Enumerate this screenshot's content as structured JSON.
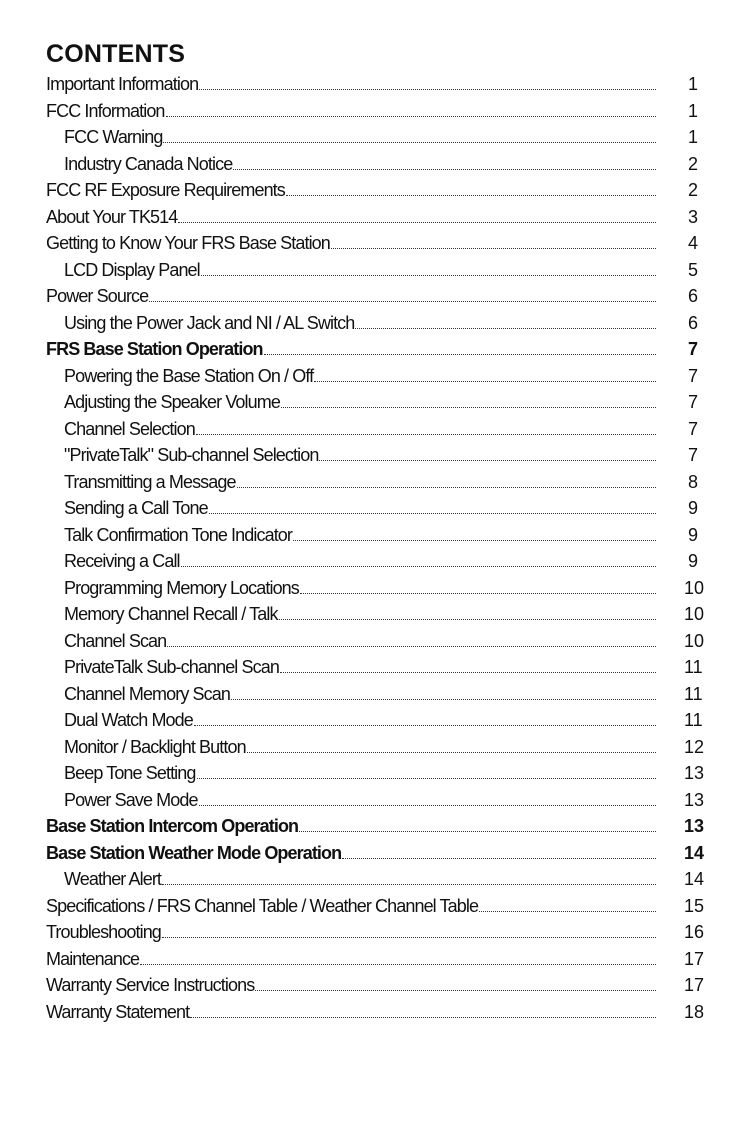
{
  "title": "CONTENTS",
  "entries": [
    {
      "label": "Important Information",
      "page": "1",
      "level": 0,
      "bold": false
    },
    {
      "label": "FCC Information",
      "page": "1",
      "level": 0,
      "bold": false
    },
    {
      "label": "FCC Warning",
      "page": "1",
      "level": 1,
      "bold": false
    },
    {
      "label": "Industry Canada Notice",
      "page": "2",
      "level": 1,
      "bold": false
    },
    {
      "label": "FCC RF Exposure Requirements",
      "page": "2",
      "level": 0,
      "bold": false
    },
    {
      "label": "About Your TK514",
      "page": "3",
      "level": 0,
      "bold": false
    },
    {
      "label": "Getting to Know Your FRS Base Station",
      "page": "4",
      "level": 0,
      "bold": false
    },
    {
      "label": "LCD Display Panel",
      "page": "5",
      "level": 1,
      "bold": false
    },
    {
      "label": "Power Source",
      "page": "6",
      "level": 0,
      "bold": false
    },
    {
      "label": "Using the Power Jack and NI / AL Switch",
      "page": "6",
      "level": 1,
      "bold": false
    },
    {
      "label": "FRS Base Station Operation",
      "page": "7",
      "level": 0,
      "bold": true
    },
    {
      "label": "Powering the Base Station On / Off",
      "page": "7",
      "level": 1,
      "bold": false
    },
    {
      "label": "Adjusting the Speaker Volume",
      "page": "7",
      "level": 1,
      "bold": false
    },
    {
      "label": "Channel Selection",
      "page": "7",
      "level": 1,
      "bold": false
    },
    {
      "label": "\"PrivateTalk\" Sub-channel Selection",
      "page": "7",
      "level": 1,
      "bold": false
    },
    {
      "label": "Transmitting a Message",
      "page": "8",
      "level": 1,
      "bold": false
    },
    {
      "label": "Sending a Call Tone",
      "page": "9",
      "level": 1,
      "bold": false
    },
    {
      "label": "Talk Confirmation Tone Indicator",
      "page": "9",
      "level": 1,
      "bold": false
    },
    {
      "label": "Receiving a Call",
      "page": "9",
      "level": 1,
      "bold": false
    },
    {
      "label": "Programming Memory Locations",
      "page": "10",
      "level": 1,
      "bold": false
    },
    {
      "label": "Memory Channel Recall / Talk",
      "page": "10",
      "level": 1,
      "bold": false
    },
    {
      "label": "Channel Scan",
      "page": "10",
      "level": 1,
      "bold": false
    },
    {
      "label": "PrivateTalk Sub-channel Scan",
      "page": "11",
      "level": 1,
      "bold": false
    },
    {
      "label": "Channel Memory Scan",
      "page": "11",
      "level": 1,
      "bold": false
    },
    {
      "label": "Dual Watch Mode",
      "page": "11",
      "level": 1,
      "bold": false
    },
    {
      "label": "Monitor / Backlight Button",
      "page": "12",
      "level": 1,
      "bold": false
    },
    {
      "label": "Beep Tone Setting",
      "page": "13",
      "level": 1,
      "bold": false
    },
    {
      "label": "Power Save Mode",
      "page": "13",
      "level": 1,
      "bold": false
    },
    {
      "label": "Base Station Intercom Operation",
      "page": "13",
      "level": 0,
      "bold": true
    },
    {
      "label": "Base Station Weather Mode Operation",
      "page": "14",
      "level": 0,
      "bold": true
    },
    {
      "label": "Weather Alert",
      "page": "14",
      "level": 1,
      "bold": false
    },
    {
      "label": "Specifications / FRS Channel Table / Weather Channel Table",
      "page": "15",
      "level": 0,
      "bold": false
    },
    {
      "label": "Troubleshooting",
      "page": "16",
      "level": 0,
      "bold": false
    },
    {
      "label": "Maintenance",
      "page": "17",
      "level": 0,
      "bold": false
    },
    {
      "label": "Warranty Service Instructions",
      "page": "17",
      "level": 0,
      "bold": false
    },
    {
      "label": "Warranty Statement",
      "page": "18",
      "level": 0,
      "bold": false
    }
  ]
}
